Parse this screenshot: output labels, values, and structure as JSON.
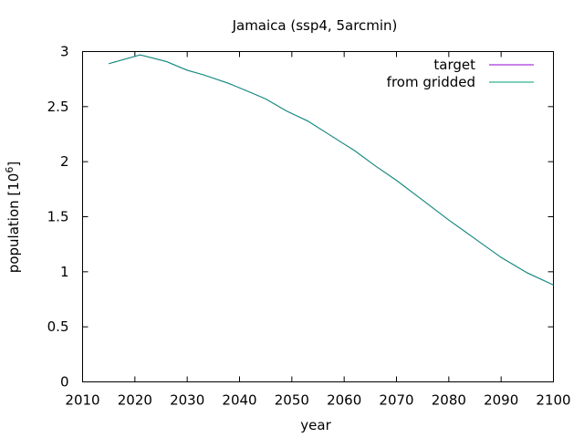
{
  "chart_data": {
    "type": "line",
    "title": "Jamaica (ssp4, 5arcmin)",
    "xlabel": "year",
    "ylabel": "population [10",
    "ylabel_sup": "6",
    "ylabel_close": "]",
    "xlim": [
      2010,
      2100
    ],
    "ylim": [
      0,
      3
    ],
    "xticks": [
      2010,
      2020,
      2030,
      2040,
      2050,
      2060,
      2070,
      2080,
      2090,
      2100
    ],
    "yticks": [
      0,
      0.5,
      1,
      1.5,
      2,
      2.5,
      3
    ],
    "ytick_labels": [
      "0",
      "0.5",
      "1",
      "1.5",
      "2",
      "2.5",
      "3"
    ],
    "grid": false,
    "legend_position": "top-right",
    "series": [
      {
        "name": "target",
        "color": "#9400d3",
        "x": [
          2015,
          2021,
          2026,
          2030,
          2033,
          2038,
          2042,
          2045,
          2049,
          2053,
          2057,
          2062,
          2066,
          2070,
          2075,
          2080,
          2085,
          2090,
          2095,
          2100
        ],
        "y": [
          2.89,
          2.97,
          2.91,
          2.83,
          2.79,
          2.71,
          2.63,
          2.57,
          2.46,
          2.37,
          2.25,
          2.1,
          1.96,
          1.83,
          1.65,
          1.47,
          1.3,
          1.13,
          0.99,
          0.88
        ]
      },
      {
        "name": "from gridded",
        "color": "#009e73",
        "x": [
          2015,
          2021,
          2026,
          2030,
          2033,
          2038,
          2042,
          2045,
          2049,
          2053,
          2057,
          2062,
          2066,
          2070,
          2075,
          2080,
          2085,
          2090,
          2095,
          2100
        ],
        "y": [
          2.89,
          2.97,
          2.91,
          2.83,
          2.79,
          2.71,
          2.63,
          2.57,
          2.46,
          2.37,
          2.25,
          2.1,
          1.96,
          1.83,
          1.65,
          1.47,
          1.3,
          1.13,
          0.99,
          0.88
        ]
      }
    ]
  }
}
